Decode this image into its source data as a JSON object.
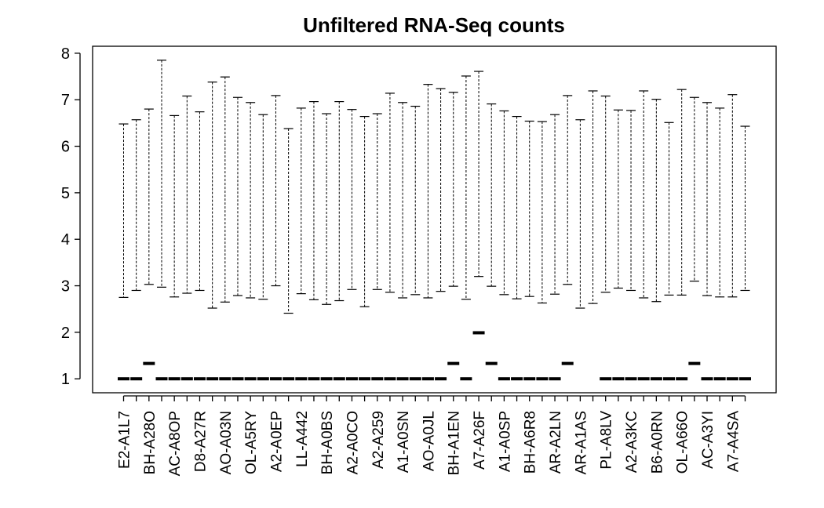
{
  "chart_data": {
    "type": "boxplot",
    "title": "Unfiltered RNA-Seq counts",
    "xlabel": "",
    "ylabel": "",
    "ylim": [
      0.7,
      8.15
    ],
    "yticks": [
      1,
      2,
      3,
      4,
      5,
      6,
      7,
      8
    ],
    "grid": false,
    "legend": "none",
    "colors": {
      "line": "#000000",
      "background": "#ffffff"
    },
    "samples": [
      {
        "label": "E2-A1L7",
        "median": 1.0,
        "upper": 6.48,
        "lower": 2.75,
        "labeled": true
      },
      {
        "label": "",
        "median": 1.0,
        "upper": 6.57,
        "lower": 2.9,
        "labeled": false
      },
      {
        "label": "BH-A28O",
        "median": 1.33,
        "upper": 6.8,
        "lower": 3.03,
        "labeled": true
      },
      {
        "label": "",
        "median": 1.0,
        "upper": 7.85,
        "lower": 2.97,
        "labeled": false
      },
      {
        "label": "AC-A8OP",
        "median": 1.0,
        "upper": 6.66,
        "lower": 2.76,
        "labeled": true
      },
      {
        "label": "",
        "median": 1.0,
        "upper": 7.08,
        "lower": 2.84,
        "labeled": false
      },
      {
        "label": "D8-A27R",
        "median": 1.0,
        "upper": 6.74,
        "lower": 2.9,
        "labeled": true
      },
      {
        "label": "",
        "median": 1.0,
        "upper": 7.38,
        "lower": 2.52,
        "labeled": false
      },
      {
        "label": "AO-A03N",
        "median": 1.0,
        "upper": 7.49,
        "lower": 2.65,
        "labeled": true
      },
      {
        "label": "",
        "median": 1.0,
        "upper": 7.05,
        "lower": 2.79,
        "labeled": false
      },
      {
        "label": "OL-A5RY",
        "median": 1.0,
        "upper": 6.94,
        "lower": 2.74,
        "labeled": true
      },
      {
        "label": "",
        "median": 1.0,
        "upper": 6.68,
        "lower": 2.71,
        "labeled": false
      },
      {
        "label": "A2-A0EP",
        "median": 1.0,
        "upper": 7.09,
        "lower": 3.0,
        "labeled": true
      },
      {
        "label": "",
        "median": 1.0,
        "upper": 6.38,
        "lower": 2.41,
        "labeled": false
      },
      {
        "label": "LL-A442",
        "median": 1.0,
        "upper": 6.82,
        "lower": 2.83,
        "labeled": true
      },
      {
        "label": "",
        "median": 1.0,
        "upper": 6.96,
        "lower": 2.7,
        "labeled": false
      },
      {
        "label": "BH-A0BS",
        "median": 1.0,
        "upper": 6.7,
        "lower": 2.6,
        "labeled": true
      },
      {
        "label": "",
        "median": 1.0,
        "upper": 6.96,
        "lower": 2.68,
        "labeled": false
      },
      {
        "label": "A2-A0CO",
        "median": 1.0,
        "upper": 6.79,
        "lower": 2.92,
        "labeled": true
      },
      {
        "label": "",
        "median": 1.0,
        "upper": 6.64,
        "lower": 2.55,
        "labeled": false
      },
      {
        "label": "A2-A259",
        "median": 1.0,
        "upper": 6.7,
        "lower": 2.92,
        "labeled": true
      },
      {
        "label": "",
        "median": 1.0,
        "upper": 7.14,
        "lower": 2.86,
        "labeled": false
      },
      {
        "label": "A1-A0SN",
        "median": 1.0,
        "upper": 6.94,
        "lower": 2.74,
        "labeled": true
      },
      {
        "label": "",
        "median": 1.0,
        "upper": 6.86,
        "lower": 2.81,
        "labeled": false
      },
      {
        "label": "AO-A0JL",
        "median": 1.0,
        "upper": 7.33,
        "lower": 2.74,
        "labeled": true
      },
      {
        "label": "",
        "median": 1.0,
        "upper": 7.24,
        "lower": 2.88,
        "labeled": false
      },
      {
        "label": "BH-A1EN",
        "median": 1.33,
        "upper": 7.16,
        "lower": 2.99,
        "labeled": true
      },
      {
        "label": "",
        "median": 1.0,
        "upper": 7.51,
        "lower": 2.71,
        "labeled": false
      },
      {
        "label": "A7-A26F",
        "median": 1.99,
        "upper": 7.61,
        "lower": 3.2,
        "labeled": true
      },
      {
        "label": "",
        "median": 1.33,
        "upper": 6.91,
        "lower": 2.99,
        "labeled": false
      },
      {
        "label": "A1-A0SP",
        "median": 1.0,
        "upper": 6.76,
        "lower": 2.81,
        "labeled": true
      },
      {
        "label": "",
        "median": 1.0,
        "upper": 6.64,
        "lower": 2.72,
        "labeled": false
      },
      {
        "label": "BH-A6R8",
        "median": 1.0,
        "upper": 6.54,
        "lower": 2.77,
        "labeled": true
      },
      {
        "label": "",
        "median": 1.0,
        "upper": 6.53,
        "lower": 2.63,
        "labeled": false
      },
      {
        "label": "AR-A2LN",
        "median": 1.0,
        "upper": 6.68,
        "lower": 2.82,
        "labeled": true
      },
      {
        "label": "",
        "median": 1.33,
        "upper": 7.09,
        "lower": 3.03,
        "labeled": false
      },
      {
        "label": "AR-A1AS",
        "median": null,
        "upper": 6.57,
        "lower": 2.52,
        "labeled": true
      },
      {
        "label": "",
        "median": null,
        "upper": 7.19,
        "lower": 2.62,
        "labeled": false
      },
      {
        "label": "PL-A8LV",
        "median": 1.0,
        "upper": 7.08,
        "lower": 2.86,
        "labeled": true
      },
      {
        "label": "",
        "median": 1.0,
        "upper": 6.78,
        "lower": 2.95,
        "labeled": false
      },
      {
        "label": "A2-A3KC",
        "median": 1.0,
        "upper": 6.77,
        "lower": 2.9,
        "labeled": true
      },
      {
        "label": "",
        "median": 1.0,
        "upper": 7.19,
        "lower": 2.74,
        "labeled": false
      },
      {
        "label": "B6-A0RN",
        "median": 1.0,
        "upper": 7.01,
        "lower": 2.66,
        "labeled": true
      },
      {
        "label": "",
        "median": 1.0,
        "upper": 6.51,
        "lower": 2.8,
        "labeled": false
      },
      {
        "label": "OL-A66O",
        "median": 1.0,
        "upper": 7.22,
        "lower": 2.8,
        "labeled": true
      },
      {
        "label": "",
        "median": 1.33,
        "upper": 7.05,
        "lower": 3.1,
        "labeled": false
      },
      {
        "label": "AC-A3YI",
        "median": 1.0,
        "upper": 6.94,
        "lower": 2.79,
        "labeled": true
      },
      {
        "label": "",
        "median": 1.0,
        "upper": 6.82,
        "lower": 2.76,
        "labeled": false
      },
      {
        "label": "A7-A4SA",
        "median": 1.0,
        "upper": 7.11,
        "lower": 2.76,
        "labeled": true
      },
      {
        "label": "",
        "median": 1.0,
        "upper": 6.43,
        "lower": 2.9,
        "labeled": false
      }
    ]
  }
}
